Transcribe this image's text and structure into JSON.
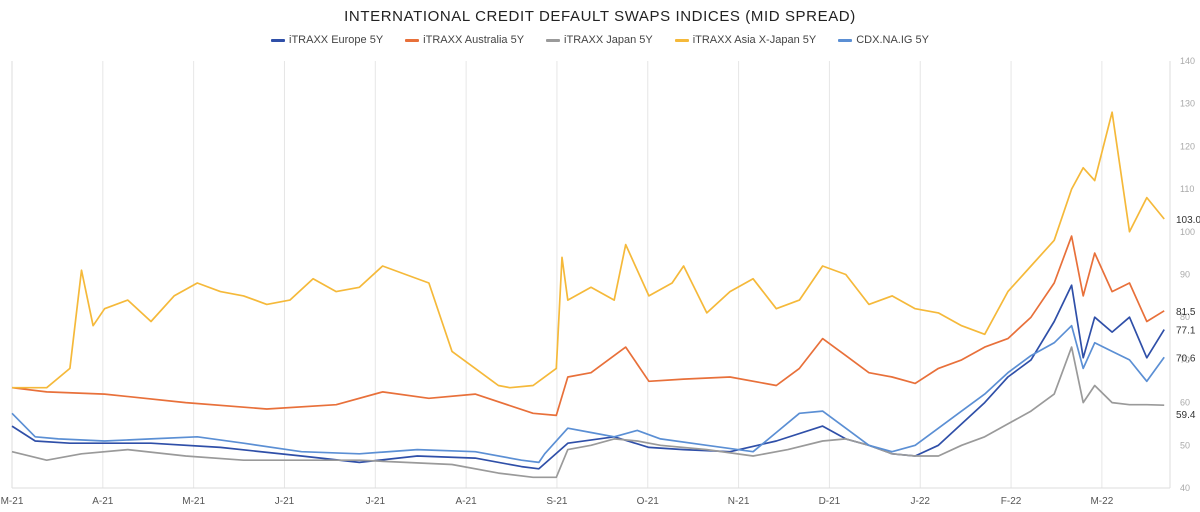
{
  "chart_data": {
    "type": "line",
    "title": "INTERNATIONAL CREDIT DEFAULT SWAPS INDICES (MID SPREAD)",
    "xlabel": "",
    "ylabel": "",
    "ylim": [
      40,
      140
    ],
    "y_ticks": [
      40,
      50,
      60,
      70,
      80,
      90,
      100,
      110,
      120,
      130,
      140
    ],
    "y_axis_position": "right",
    "x_tick_labels": [
      "M-21",
      "A-21",
      "M-21",
      "J-21",
      "J-21",
      "A-21",
      "S-21",
      "O-21",
      "N-21",
      "D-21",
      "J-22",
      "F-22",
      "M-22"
    ],
    "x_range": [
      0,
      100
    ],
    "grid": "vertical",
    "legend_position": "top",
    "series": [
      {
        "name": "iTRAXX Europe 5Y",
        "color": "#2f4fa8",
        "end_label": "77.1",
        "x": [
          0,
          2,
          5,
          8,
          12,
          18,
          25,
          30,
          35,
          40,
          44,
          45.5,
          48,
          52,
          55,
          58,
          62,
          66,
          70,
          72,
          74,
          76,
          78,
          80,
          82,
          84,
          86,
          88,
          90,
          91.5,
          92.5,
          93.5,
          95,
          96.5,
          98,
          99.5
        ],
        "y": [
          54.5,
          51,
          50.5,
          50.5,
          50.5,
          49.5,
          47.5,
          46,
          47.5,
          47,
          45,
          44.5,
          50.5,
          52,
          49.5,
          49,
          48.5,
          51,
          54.5,
          51.5,
          50,
          48,
          47.5,
          50,
          55,
          60,
          66,
          70,
          79,
          87.5,
          70.5,
          80,
          76.5,
          80,
          70.5,
          77.1
        ]
      },
      {
        "name": "iTRAXX Australia 5Y",
        "color": "#e8703a",
        "end_label": "81.5",
        "x": [
          0,
          3,
          8,
          15,
          22,
          28,
          32,
          36,
          40,
          45,
          47,
          48,
          50,
          53,
          55,
          58,
          62,
          66,
          68,
          70,
          72,
          74,
          76,
          78,
          80,
          82,
          84,
          86,
          88,
          90,
          91.5,
          92.5,
          93.5,
          95,
          96.5,
          98,
          99.5
        ],
        "y": [
          63.5,
          62.5,
          62,
          60,
          58.5,
          59.5,
          62.5,
          61,
          62,
          57.5,
          57,
          66,
          67,
          73,
          65,
          65.5,
          66,
          64,
          68,
          75,
          71,
          67,
          66,
          64.5,
          68,
          70,
          73,
          75,
          80,
          88,
          99,
          85,
          95,
          86,
          88,
          79,
          81.5
        ]
      },
      {
        "name": "iTRAXX Japan 5Y",
        "color": "#9a9a9a",
        "end_label": "59.4",
        "x": [
          0,
          3,
          6,
          10,
          15,
          20,
          26,
          30,
          34,
          38,
          42,
          45,
          47,
          48,
          50,
          52,
          54,
          56,
          60,
          64,
          67,
          70,
          72,
          74,
          76,
          78,
          80,
          82,
          84,
          86,
          88,
          90,
          91.5,
          92.5,
          93.5,
          95,
          96.5,
          98,
          99.5
        ],
        "y": [
          48.5,
          46.5,
          48,
          49,
          47.5,
          46.5,
          46.5,
          46.5,
          46,
          45.5,
          43.5,
          42.5,
          42.5,
          49,
          50,
          51.5,
          51,
          50,
          49,
          47.5,
          49,
          51,
          51.5,
          50,
          48,
          47.5,
          47.5,
          50,
          52,
          55,
          58,
          62,
          73,
          60,
          64,
          60,
          59.5,
          59.5,
          59.4
        ]
      },
      {
        "name": "iTRAXX Asia X-Japan 5Y",
        "color": "#f5b93a",
        "end_label": "103.0",
        "x": [
          0,
          3,
          5,
          6,
          7,
          8,
          10,
          12,
          14,
          16,
          18,
          20,
          22,
          24,
          26,
          28,
          30,
          32,
          34,
          36,
          38,
          40,
          42,
          43,
          45,
          47,
          47.5,
          48,
          50,
          52,
          53,
          55,
          57,
          58,
          60,
          62,
          64,
          66,
          68,
          70,
          72,
          74,
          76,
          78,
          80,
          82,
          84,
          86,
          88,
          90,
          91.5,
          92.5,
          93.5,
          95,
          96.5,
          98,
          99.5
        ],
        "y": [
          63.5,
          63.5,
          68,
          91,
          78,
          82,
          84,
          79,
          85,
          88,
          86,
          85,
          83,
          84,
          89,
          86,
          87,
          92,
          90,
          88,
          72,
          68,
          64,
          63.5,
          64,
          68,
          94,
          84,
          87,
          84,
          97,
          85,
          88,
          92,
          81,
          86,
          89,
          82,
          84,
          92,
          90,
          83,
          85,
          82,
          81,
          78,
          76,
          86,
          92,
          98,
          110,
          115,
          112,
          128,
          100,
          108,
          103
        ]
      },
      {
        "name": "CDX.NA.IG 5Y",
        "color": "#5b8fd4",
        "end_label": "70.6",
        "x": [
          0,
          2,
          4,
          8,
          12,
          16,
          20,
          25,
          30,
          35,
          40,
          44,
          45.5,
          46,
          48,
          50,
          52,
          54,
          56,
          60,
          64,
          66,
          68,
          70,
          72,
          74,
          76,
          78,
          80,
          82,
          84,
          86,
          88,
          90,
          91.5,
          92.5,
          93.5,
          95,
          96.5,
          98,
          99.5
        ],
        "y": [
          57.5,
          52,
          51.5,
          51,
          51.5,
          52,
          50.5,
          48.5,
          48,
          49,
          48.5,
          46.5,
          46,
          48,
          54,
          53,
          52,
          53.5,
          51.5,
          50,
          48.5,
          53,
          57.5,
          58,
          54,
          50,
          48.5,
          50,
          54,
          58,
          62,
          67,
          71,
          74,
          78,
          68,
          74,
          72,
          70,
          65,
          70.6
        ]
      }
    ]
  }
}
